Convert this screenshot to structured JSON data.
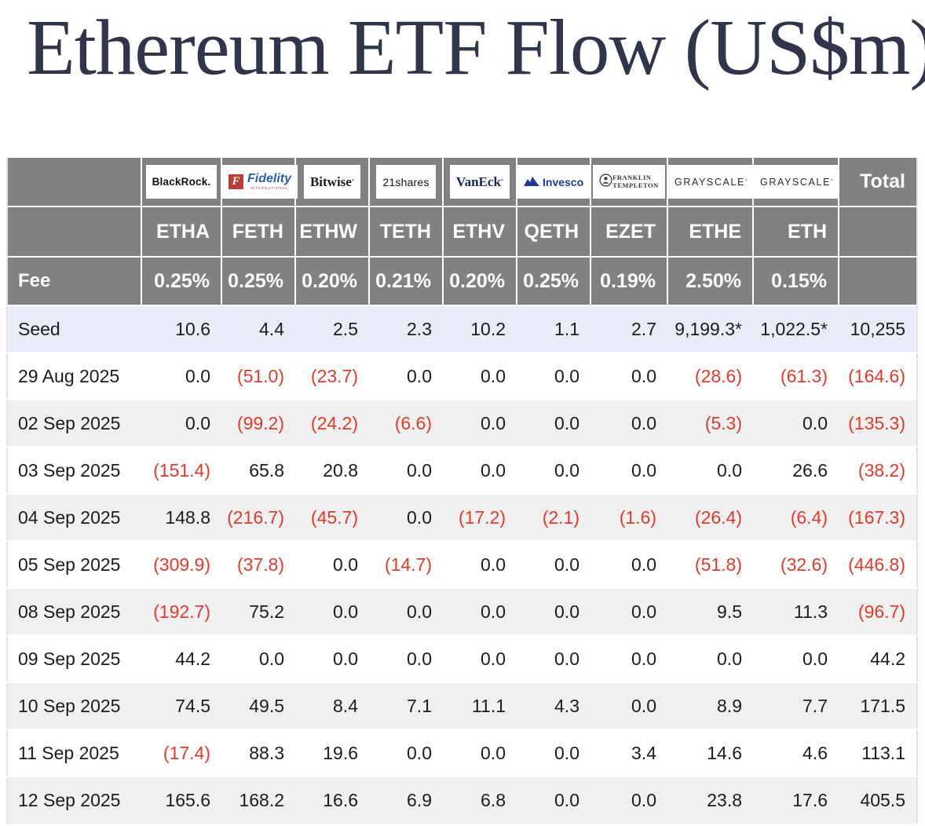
{
  "page": {
    "title": "Ethereum ETF Flow (US$m)"
  },
  "colors": {
    "title": "#31354b",
    "header_bg": "#818181",
    "seed_row_bg": "#e9edf8",
    "alt_row_bg": "#f0f0f0",
    "negative": "#e23b2b"
  },
  "table": {
    "total_header": "Total",
    "fee_label": "Fee",
    "providers": [
      {
        "id": "blackrock",
        "text": "BlackRock."
      },
      {
        "id": "fidelity",
        "f_mark": "F",
        "text": "Fidelity",
        "sub": "INTERNATIONAL"
      },
      {
        "id": "bitwise",
        "text": "Bitwise",
        "mark": "°"
      },
      {
        "id": "21shares",
        "text": "21shares"
      },
      {
        "id": "vaneck",
        "text": "VanEck",
        "mark": "°"
      },
      {
        "id": "invesco",
        "text": "Invesco"
      },
      {
        "id": "franklin-templeton",
        "line1": "FRANKLIN",
        "line2": "TEMPLETON"
      },
      {
        "id": "grayscale-1",
        "text": "GRAYSCALE",
        "mark": "°"
      },
      {
        "id": "grayscale-2",
        "text": "GRAYSCALE",
        "mark": "°"
      }
    ],
    "tickers": [
      "ETHA",
      "FETH",
      "ETHW",
      "TETH",
      "ETHV",
      "QETH",
      "EZET",
      "ETHE",
      "ETH"
    ],
    "fees": [
      "0.25%",
      "0.25%",
      "0.20%",
      "0.21%",
      "0.20%",
      "0.25%",
      "0.19%",
      "2.50%",
      "0.15%"
    ],
    "rows": [
      {
        "label": "Seed",
        "kind": "seed",
        "values": [
          "10.6",
          "4.4",
          "2.5",
          "2.3",
          "10.2",
          "1.1",
          "2.7",
          "9,199.3*",
          "1,022.5*"
        ],
        "total": "10,255"
      },
      {
        "label": "29 Aug 2025",
        "kind": "date",
        "values": [
          "0.0",
          "(51.0)",
          "(23.7)",
          "0.0",
          "0.0",
          "0.0",
          "0.0",
          "(28.6)",
          "(61.3)"
        ],
        "total": "(164.6)"
      },
      {
        "label": "02 Sep 2025",
        "kind": "date",
        "values": [
          "0.0",
          "(99.2)",
          "(24.2)",
          "(6.6)",
          "0.0",
          "0.0",
          "0.0",
          "(5.3)",
          "0.0"
        ],
        "total": "(135.3)"
      },
      {
        "label": "03 Sep 2025",
        "kind": "date",
        "values": [
          "(151.4)",
          "65.8",
          "20.8",
          "0.0",
          "0.0",
          "0.0",
          "0.0",
          "0.0",
          "26.6"
        ],
        "total": "(38.2)"
      },
      {
        "label": "04 Sep 2025",
        "kind": "date",
        "values": [
          "148.8",
          "(216.7)",
          "(45.7)",
          "0.0",
          "(17.2)",
          "(2.1)",
          "(1.6)",
          "(26.4)",
          "(6.4)"
        ],
        "total": "(167.3)"
      },
      {
        "label": "05 Sep 2025",
        "kind": "date",
        "values": [
          "(309.9)",
          "(37.8)",
          "0.0",
          "(14.7)",
          "0.0",
          "0.0",
          "0.0",
          "(51.8)",
          "(32.6)"
        ],
        "total": "(446.8)"
      },
      {
        "label": "08 Sep 2025",
        "kind": "date",
        "values": [
          "(192.7)",
          "75.2",
          "0.0",
          "0.0",
          "0.0",
          "0.0",
          "0.0",
          "9.5",
          "11.3"
        ],
        "total": "(96.7)"
      },
      {
        "label": "09 Sep 2025",
        "kind": "date",
        "values": [
          "44.2",
          "0.0",
          "0.0",
          "0.0",
          "0.0",
          "0.0",
          "0.0",
          "0.0",
          "0.0"
        ],
        "total": "44.2"
      },
      {
        "label": "10 Sep 2025",
        "kind": "date",
        "values": [
          "74.5",
          "49.5",
          "8.4",
          "7.1",
          "11.1",
          "4.3",
          "0.0",
          "8.9",
          "7.7"
        ],
        "total": "171.5"
      },
      {
        "label": "11 Sep 2025",
        "kind": "date",
        "values": [
          "(17.4)",
          "88.3",
          "19.6",
          "0.0",
          "0.0",
          "0.0",
          "3.4",
          "14.6",
          "4.6"
        ],
        "total": "113.1"
      },
      {
        "label": "12 Sep 2025",
        "kind": "date",
        "values": [
          "165.6",
          "168.2",
          "16.6",
          "6.9",
          "6.8",
          "0.0",
          "0.0",
          "23.8",
          "17.6"
        ],
        "total": "405.5"
      }
    ]
  }
}
